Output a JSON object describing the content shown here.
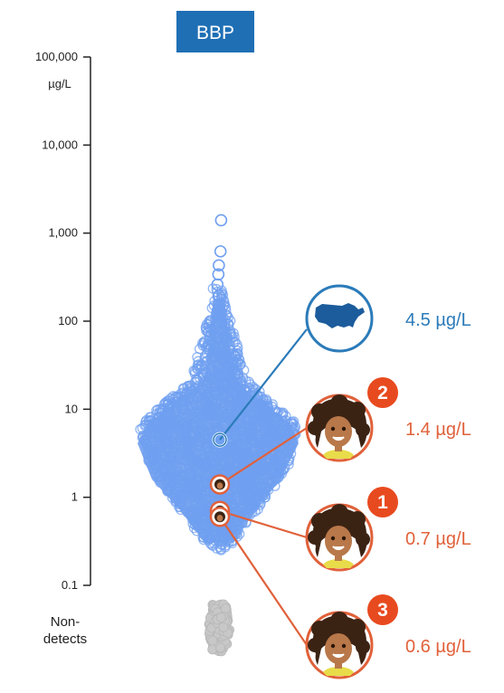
{
  "chart_data": {
    "type": "scatter",
    "title": "BBP",
    "y_scale": "log",
    "ylim": [
      0.1,
      100000
    ],
    "y_unit": "µg/L",
    "y_ticks": [
      {
        "value": 100000,
        "label": "100,000"
      },
      {
        "value": 10000,
        "label": "10,000"
      },
      {
        "value": 1000,
        "label": "1,000"
      },
      {
        "value": 100,
        "label": "100"
      },
      {
        "value": 10,
        "label": "10"
      },
      {
        "value": 1,
        "label": "1"
      },
      {
        "value": 0.1,
        "label": "0.1"
      }
    ],
    "nondetect_label_line1": "Non-",
    "nondetect_label_line2": "detects",
    "outlier_values": [
      1400,
      620,
      430,
      340,
      260,
      195
    ],
    "highlights": [
      {
        "id": "us",
        "value": 4.5,
        "label": "4.5 µg/L",
        "badge": "",
        "icon": "us-map-icon",
        "color": "#2b7bb9"
      },
      {
        "id": "p2",
        "value": 1.4,
        "label": "1.4 µg/L",
        "badge": "2",
        "icon": "person-face-icon",
        "color": "#e0613a"
      },
      {
        "id": "p1",
        "value": 0.7,
        "label": "0.7 µg/L",
        "badge": "1",
        "icon": "person-face-icon",
        "color": "#e0613a"
      },
      {
        "id": "p3",
        "value": 0.6,
        "label": "0.6 µg/L",
        "badge": "3",
        "icon": "person-face-icon",
        "color": "#e0613a"
      }
    ],
    "colors": {
      "title_bg": "#1f6fb5",
      "distribution": "#6f9ff0",
      "nondetects": "#c8c8c8",
      "us_accent": "#2b7bb9",
      "person_accent": "#e0613a",
      "badge": "#e84a1f"
    }
  }
}
